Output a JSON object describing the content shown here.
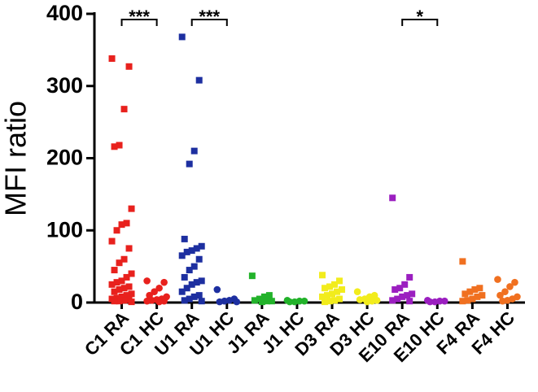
{
  "chart_data": {
    "type": "strip",
    "y_label": "MFI ratio",
    "categories": [
      "C1 RA",
      "C1 HC",
      "U1 RA",
      "U1 HC",
      "J1 RA",
      "J1 HC",
      "D3 RA",
      "D3 HC",
      "E10 RA",
      "E10 HC",
      "F4 RA",
      "F4 HC"
    ],
    "colors": [
      "#e8211d",
      "#e8211d",
      "#1d2fa0",
      "#1d2fa0",
      "#22b22a",
      "#22b22a",
      "#f2ec1c",
      "#f2ec1c",
      "#9b1fc0",
      "#9b1fc0",
      "#f07020",
      "#f07020"
    ],
    "markers": [
      "square",
      "circle",
      "square",
      "circle",
      "square",
      "circle",
      "square",
      "circle",
      "square",
      "circle",
      "square",
      "circle"
    ],
    "values": [
      [
        338,
        327,
        268,
        218,
        216,
        130,
        110,
        108,
        100,
        85,
        75,
        60,
        55,
        45,
        40,
        35,
        30,
        28,
        25,
        22,
        20,
        18,
        15,
        12,
        10,
        8,
        6,
        5,
        4,
        3,
        2,
        2,
        1
      ],
      [
        30,
        28,
        20,
        15,
        10,
        8,
        5,
        4,
        3,
        2,
        2,
        1
      ],
      [
        368,
        308,
        210,
        192,
        88,
        78,
        75,
        72,
        70,
        65,
        60,
        50,
        45,
        35,
        30,
        28,
        25,
        20,
        15,
        10,
        8,
        5,
        3,
        2
      ],
      [
        18,
        5,
        3,
        2,
        1,
        1
      ],
      [
        37,
        10,
        8,
        5,
        3,
        2,
        2,
        1
      ],
      [
        3,
        2,
        2,
        1,
        1
      ],
      [
        38,
        30,
        25,
        22,
        20,
        18,
        15,
        12,
        10,
        8,
        5,
        3,
        2,
        1
      ],
      [
        15,
        10,
        8,
        5,
        4,
        3,
        2,
        1
      ],
      [
        145,
        35,
        25,
        20,
        18,
        12,
        10,
        8,
        5,
        3,
        2
      ],
      [
        3,
        2,
        2,
        1,
        1
      ],
      [
        57,
        20,
        18,
        15,
        12,
        10,
        8,
        5,
        3,
        2
      ],
      [
        32,
        28,
        22,
        15,
        10,
        8,
        5,
        3,
        2
      ]
    ],
    "ylim": [
      0,
      400
    ],
    "yticks": [
      0,
      100,
      200,
      300,
      400
    ],
    "annotations": [
      {
        "text": "***",
        "from": "C1 RA",
        "to": "C1 HC"
      },
      {
        "text": "***",
        "from": "U1 RA",
        "to": "U1 HC"
      },
      {
        "text": "*",
        "from": "E10 RA",
        "to": "E10 HC"
      }
    ]
  }
}
